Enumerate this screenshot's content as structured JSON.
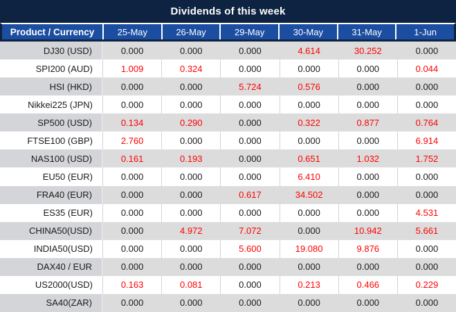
{
  "title": "Dividends of this week",
  "colors": {
    "title_bar_navy": "#0e2341",
    "header_blue": "#1b4ea0",
    "header_text": "#ffffff",
    "row_gray": "#dcdcdc",
    "label_gray": "#d4d5d9",
    "value_text": "#1a1a1a",
    "nonzero_value_red": "#ff0000"
  },
  "chart_data": {
    "type": "table",
    "title": "Dividends of this week",
    "columns": [
      "Product / Currency",
      "25-May",
      "26-May",
      "29-May",
      "30-May",
      "31-May",
      "1-Jun"
    ],
    "red_if_nonzero": true,
    "rows": [
      {
        "label": "DJ30 (USD)",
        "values": [
          "0.000",
          "0.000",
          "0.000",
          "4.614",
          "30.252",
          "0.000"
        ]
      },
      {
        "label": "SPI200 (AUD)",
        "values": [
          "1.009",
          "0.324",
          "0.000",
          "0.000",
          "0.000",
          "0.044"
        ]
      },
      {
        "label": "HSI (HKD)",
        "values": [
          "0.000",
          "0.000",
          "5.724",
          "0.576",
          "0.000",
          "0.000"
        ]
      },
      {
        "label": "Nikkei225 (JPN)",
        "values": [
          "0.000",
          "0.000",
          "0.000",
          "0.000",
          "0.000",
          "0.000"
        ]
      },
      {
        "label": "SP500 (USD)",
        "values": [
          "0.134",
          "0.290",
          "0.000",
          "0.322",
          "0.877",
          "0.764"
        ]
      },
      {
        "label": "FTSE100 (GBP)",
        "values": [
          "2.760",
          "0.000",
          "0.000",
          "0.000",
          "0.000",
          "6.914"
        ]
      },
      {
        "label": "NAS100 (USD)",
        "values": [
          "0.161",
          "0.193",
          "0.000",
          "0.651",
          "1.032",
          "1.752"
        ]
      },
      {
        "label": "EU50 (EUR)",
        "values": [
          "0.000",
          "0.000",
          "0.000",
          "6.410",
          "0.000",
          "0.000"
        ]
      },
      {
        "label": "FRA40 (EUR)",
        "values": [
          "0.000",
          "0.000",
          "0.617",
          "34.502",
          "0.000",
          "0.000"
        ]
      },
      {
        "label": "ES35 (EUR)",
        "values": [
          "0.000",
          "0.000",
          "0.000",
          "0.000",
          "0.000",
          "4.531"
        ]
      },
      {
        "label": "CHINA50(USD)",
        "values": [
          "0.000",
          "4.972",
          "7.072",
          "0.000",
          "10.942",
          "5.661"
        ]
      },
      {
        "label": "INDIA50(USD)",
        "values": [
          "0.000",
          "0.000",
          "5.600",
          "19.080",
          "9.876",
          "0.000"
        ]
      },
      {
        "label": "DAX40 / EUR",
        "values": [
          "0.000",
          "0.000",
          "0.000",
          "0.000",
          "0.000",
          "0.000"
        ]
      },
      {
        "label": "US2000(USD)",
        "values": [
          "0.163",
          "0.081",
          "0.000",
          "0.213",
          "0.466",
          "0.229"
        ]
      },
      {
        "label": "SA40(ZAR)",
        "values": [
          "0.000",
          "0.000",
          "0.000",
          "0.000",
          "0.000",
          "0.000"
        ]
      }
    ]
  }
}
